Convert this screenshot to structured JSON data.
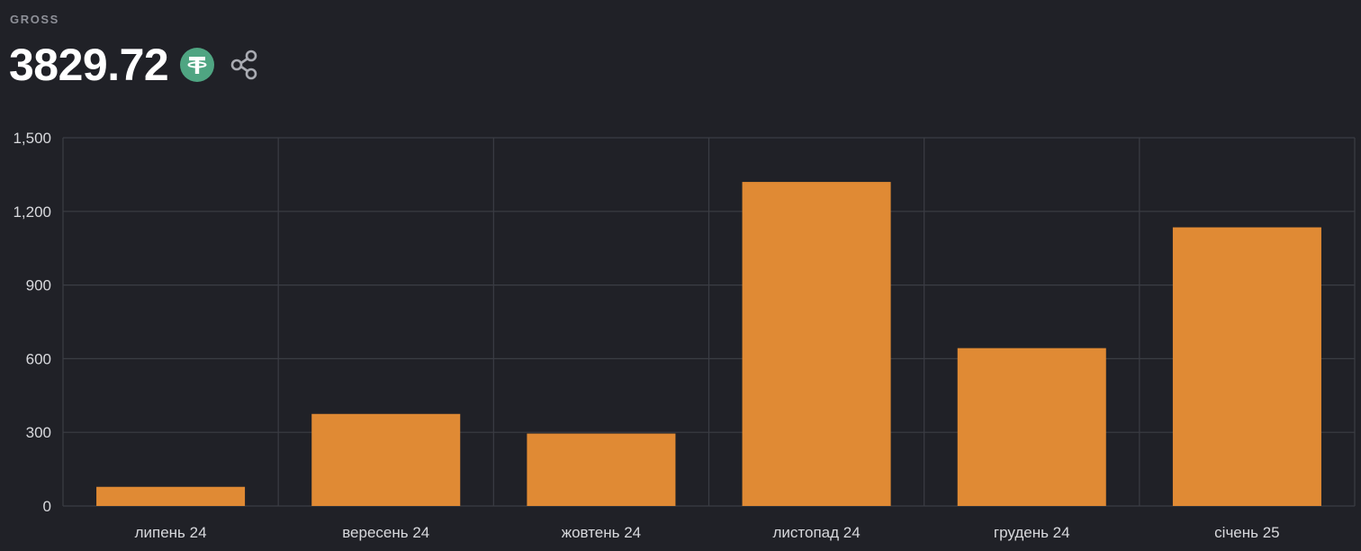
{
  "header": {
    "label": "GROSS",
    "amount": "3829.72",
    "token_icon": "tether-usdt-icon",
    "share_icon": "share-icon"
  },
  "colors": {
    "background": "#202127",
    "bar": "#e08a34",
    "grid": "#3b3d44",
    "axis_text": "#d8d9dd",
    "token_green": "#4fa582"
  },
  "chart_data": {
    "type": "bar",
    "categories": [
      "липень 24",
      "вересень 24",
      "жовтень 24",
      "листопад 24",
      "грудень 24",
      "січень 25"
    ],
    "values": [
      78,
      375,
      295,
      1320,
      643,
      1135
    ],
    "ylim": [
      0,
      1500
    ],
    "yticks": [
      0,
      300,
      600,
      900,
      1200,
      1500
    ],
    "ytick_labels": [
      "0",
      "300",
      "600",
      "900",
      "1,200",
      "1,500"
    ],
    "grid": true,
    "legend": "none"
  }
}
